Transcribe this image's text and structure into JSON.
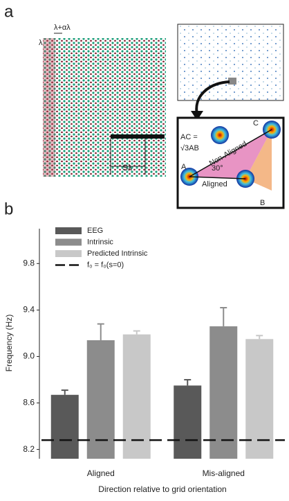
{
  "panel_a": {
    "label": "a",
    "lambda_alpha": "λ+αλ",
    "lambda": "λ",
    "s_lambda": "Sλ",
    "ac_eq": "AC =",
    "sqrt_ab": "√3AB",
    "non_aligned": "Non-Aligned",
    "point_c": "C",
    "point_a": "A",
    "angle": "30°",
    "aligned": "Aligned",
    "point_b": "B"
  },
  "chart_data": {
    "type": "bar",
    "panel_label": "b",
    "x_label": "Direction relative to grid orientation",
    "y_label": "Frequency (Hz)",
    "categories": [
      "Aligned",
      "Mis-aligned"
    ],
    "series": [
      {
        "name": "EEG",
        "color": "#595959",
        "values": [
          8.67,
          8.75
        ],
        "errors": [
          0.04,
          0.05
        ]
      },
      {
        "name": "Intrinsic",
        "color": "#8c8c8c",
        "values": [
          9.14,
          9.26
        ],
        "errors": [
          0.14,
          0.16
        ]
      },
      {
        "name": "Predicted Intrinsic",
        "color": "#c8c8c8",
        "values": [
          9.19,
          9.15
        ],
        "errors": [
          0.03,
          0.03
        ]
      }
    ],
    "reference_line": {
      "name": "f₀ = f₀(s=0)",
      "value": 8.28
    },
    "ylim": [
      8.12,
      10.1
    ],
    "yticks": [
      8.2,
      8.6,
      {
        "value": 9,
        "label": "9.0"
      },
      9.4,
      9.8
    ]
  }
}
